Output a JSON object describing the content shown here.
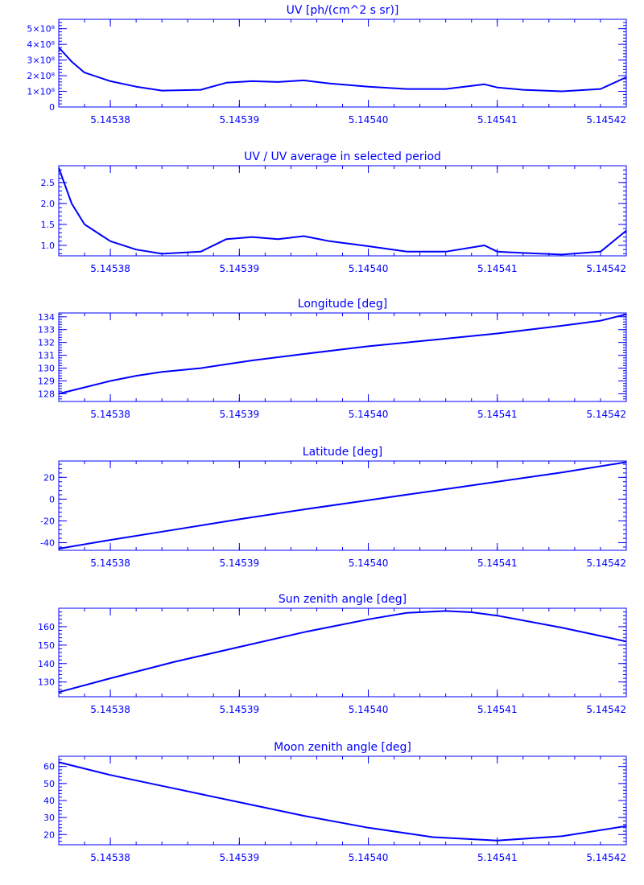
{
  "chart_data": [
    {
      "type": "line",
      "title": "UV [ph/(cm^2 s sr)]",
      "xlabel": "",
      "ylabel": "",
      "xlim": [
        5.145376,
        5.14542
      ],
      "ylim": [
        0,
        5.6
      ],
      "xticks": [
        "5.14538",
        "5.14539",
        "5.14540",
        "5.14541",
        "5.14542"
      ],
      "xtick_values": [
        5.14538,
        5.14539,
        5.1454,
        5.14541,
        5.14542
      ],
      "yticks": [
        "0",
        "1×10⁸",
        "2×10⁸",
        "3×10⁸",
        "4×10⁸",
        "5×10⁸"
      ],
      "ytick_values": [
        0,
        1,
        2,
        3,
        4,
        5
      ],
      "series": [
        {
          "x": [
            5.145376,
            5.145377,
            5.145378,
            5.14538,
            5.145382,
            5.145384,
            5.145387,
            5.145389,
            5.145391,
            5.145393,
            5.145395,
            5.145397,
            5.1454,
            5.145403,
            5.145406,
            5.145409,
            5.14541,
            5.145412,
            5.145415,
            5.145418,
            5.14542
          ],
          "y": [
            3.8,
            2.9,
            2.2,
            1.65,
            1.3,
            1.05,
            1.1,
            1.55,
            1.65,
            1.6,
            1.7,
            1.5,
            1.3,
            1.15,
            1.15,
            1.45,
            1.25,
            1.1,
            1.0,
            1.15,
            1.9
          ]
        }
      ]
    },
    {
      "type": "line",
      "title": "UV / UV average in selected period",
      "xlabel": "",
      "ylabel": "",
      "xlim": [
        5.145376,
        5.14542
      ],
      "ylim": [
        0.75,
        2.9
      ],
      "xticks": [
        "5.14538",
        "5.14539",
        "5.14540",
        "5.14541",
        "5.14542"
      ],
      "xtick_values": [
        5.14538,
        5.14539,
        5.1454,
        5.14541,
        5.14542
      ],
      "yticks": [
        "1.0",
        "1.5",
        "2.0",
        "2.5"
      ],
      "ytick_values": [
        1.0,
        1.5,
        2.0,
        2.5
      ],
      "series": [
        {
          "x": [
            5.145376,
            5.145377,
            5.145378,
            5.14538,
            5.145382,
            5.145384,
            5.145387,
            5.145389,
            5.145391,
            5.145393,
            5.145395,
            5.145397,
            5.1454,
            5.145403,
            5.145406,
            5.145409,
            5.14541,
            5.145412,
            5.145415,
            5.145418,
            5.14542
          ],
          "y": [
            2.85,
            2.0,
            1.5,
            1.1,
            0.9,
            0.8,
            0.85,
            1.15,
            1.2,
            1.15,
            1.22,
            1.1,
            0.98,
            0.85,
            0.85,
            1.0,
            0.85,
            0.82,
            0.78,
            0.85,
            1.35
          ]
        }
      ]
    },
    {
      "type": "line",
      "title": "Longitude [deg]",
      "xlabel": "",
      "ylabel": "",
      "xlim": [
        5.145376,
        5.14542
      ],
      "ylim": [
        127.4,
        134.3
      ],
      "xticks": [
        "5.14538",
        "5.14539",
        "5.14540",
        "5.14541",
        "5.14542"
      ],
      "xtick_values": [
        5.14538,
        5.14539,
        5.1454,
        5.14541,
        5.14542
      ],
      "yticks": [
        "128",
        "129",
        "130",
        "131",
        "132",
        "133",
        "134"
      ],
      "ytick_values": [
        128,
        129,
        130,
        131,
        132,
        133,
        134
      ],
      "series": [
        {
          "x": [
            5.145376,
            5.145378,
            5.14538,
            5.145382,
            5.145384,
            5.145387,
            5.145389,
            5.145391,
            5.145395,
            5.1454,
            5.145405,
            5.14541,
            5.145415,
            5.145418,
            5.14542
          ],
          "y": [
            128.0,
            128.5,
            129.0,
            129.4,
            129.7,
            130.0,
            130.3,
            130.6,
            131.1,
            131.7,
            132.2,
            132.7,
            133.3,
            133.7,
            134.2
          ]
        }
      ]
    },
    {
      "type": "line",
      "title": "Latitude [deg]",
      "xlabel": "",
      "ylabel": "",
      "xlim": [
        5.145376,
        5.14542
      ],
      "ylim": [
        -47,
        35
      ],
      "xticks": [
        "5.14538",
        "5.14539",
        "5.14540",
        "5.14541",
        "5.14542"
      ],
      "xtick_values": [
        5.14538,
        5.14539,
        5.1454,
        5.14541,
        5.14542
      ],
      "yticks": [
        "-40",
        "-20",
        "0",
        "20"
      ],
      "ytick_values": [
        -40,
        -20,
        0,
        20
      ],
      "series": [
        {
          "x": [
            5.145376,
            5.14538,
            5.145385,
            5.14539,
            5.145395,
            5.1454,
            5.145405,
            5.14541,
            5.145415,
            5.14542
          ],
          "y": [
            -45.5,
            -37.5,
            -28,
            -18.5,
            -9.5,
            -1,
            7.5,
            16,
            24.5,
            34
          ]
        }
      ]
    },
    {
      "type": "line",
      "title": "Sun zenith angle [deg]",
      "xlabel": "",
      "ylabel": "",
      "xlim": [
        5.145376,
        5.14542
      ],
      "ylim": [
        122,
        170
      ],
      "xticks": [
        "5.14538",
        "5.14539",
        "5.14540",
        "5.14541",
        "5.14542"
      ],
      "xtick_values": [
        5.14538,
        5.14539,
        5.1454,
        5.14541,
        5.14542
      ],
      "yticks": [
        "130",
        "140",
        "150",
        "160"
      ],
      "ytick_values": [
        130,
        140,
        150,
        160
      ],
      "series": [
        {
          "x": [
            5.145376,
            5.14538,
            5.145385,
            5.14539,
            5.145395,
            5.1454,
            5.145403,
            5.145406,
            5.145408,
            5.14541,
            5.145415,
            5.14542
          ],
          "y": [
            124.5,
            132,
            141,
            149,
            157,
            164,
            167.5,
            168.5,
            167.8,
            166,
            159.5,
            152
          ]
        }
      ]
    },
    {
      "type": "line",
      "title": "Moon zenith angle [deg]",
      "xlabel": "",
      "ylabel": "",
      "xlim": [
        5.145376,
        5.14542
      ],
      "ylim": [
        14,
        66
      ],
      "xticks": [
        "5.14538",
        "5.14539",
        "5.14540",
        "5.14541",
        "5.14542"
      ],
      "xtick_values": [
        5.14538,
        5.14539,
        5.1454,
        5.14541,
        5.14542
      ],
      "yticks": [
        "20",
        "30",
        "40",
        "50",
        "60"
      ],
      "ytick_values": [
        20,
        30,
        40,
        50,
        60
      ],
      "series": [
        {
          "x": [
            5.145376,
            5.14538,
            5.145385,
            5.14539,
            5.145395,
            5.1454,
            5.145405,
            5.14541,
            5.145415,
            5.14542
          ],
          "y": [
            62.5,
            55,
            47,
            39,
            31,
            24,
            18.5,
            16.5,
            19,
            25
          ]
        }
      ]
    }
  ],
  "style": {
    "line_color": "#0000ff",
    "background": "#ffffff"
  }
}
